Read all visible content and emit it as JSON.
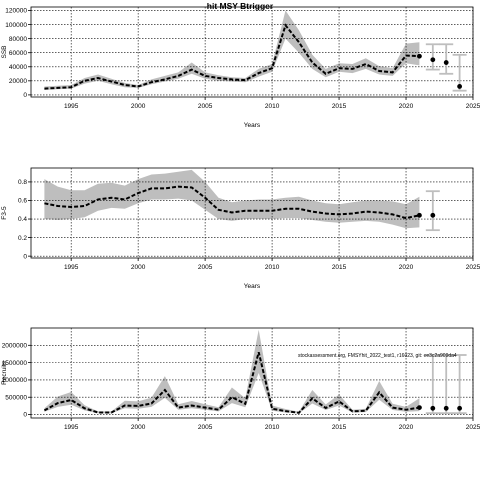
{
  "figure": {
    "title": "hit MSY Btrigger",
    "watermark": "stockassessment.org, FMSYhit_2022_test1, r16023, git: ee3c2a909da4"
  },
  "style": {
    "band_color": "#bebebe",
    "line_color": "#000000"
  },
  "chart_data": [
    {
      "type": "line",
      "id": "ssb",
      "ylabel": "SSB",
      "xlabel": "Years",
      "xlim": [
        1992,
        2025
      ],
      "ylim": [
        -3000,
        125000
      ],
      "xticks": [
        1995,
        2000,
        2005,
        2010,
        2015,
        2020,
        2025
      ],
      "yticks": [
        0,
        20000,
        40000,
        60000,
        80000,
        100000,
        120000
      ],
      "grid": true,
      "x": [
        1993,
        1994,
        1995,
        1996,
        1997,
        1998,
        1999,
        2000,
        2001,
        2002,
        2003,
        2004,
        2005,
        2006,
        2007,
        2008,
        2009,
        2010,
        2011,
        2012,
        2013,
        2014,
        2015,
        2016,
        2017,
        2018,
        2019,
        2020,
        2021
      ],
      "estimate": [
        9000,
        10000,
        11000,
        20000,
        24000,
        19000,
        14000,
        12000,
        18000,
        22000,
        27000,
        36000,
        27000,
        24000,
        22000,
        21000,
        31000,
        38000,
        99000,
        75000,
        46000,
        30000,
        38000,
        37000,
        44000,
        34000,
        32000,
        56000,
        55000
      ],
      "lower": [
        7000,
        8000,
        9000,
        16000,
        20000,
        15000,
        11000,
        10000,
        15000,
        19000,
        23000,
        30000,
        23000,
        20000,
        19000,
        18000,
        26000,
        33000,
        80000,
        60000,
        37000,
        25000,
        33000,
        31000,
        37000,
        29000,
        27000,
        45000,
        42000
      ],
      "upper": [
        12000,
        13000,
        14000,
        24000,
        29000,
        23000,
        17000,
        14000,
        22000,
        27000,
        32000,
        46000,
        32000,
        28000,
        25000,
        24000,
        37000,
        44000,
        120000,
        92000,
        57000,
        37000,
        45000,
        44000,
        52000,
        41000,
        38000,
        73000,
        75000
      ],
      "forecast": [
        {
          "x": 2022,
          "y": 50000,
          "lower": 36000,
          "upper": 72000
        },
        {
          "x": 2023,
          "y": 46000,
          "lower": 30000,
          "upper": 72000
        },
        {
          "x": 2024,
          "y": 12000,
          "lower": 6000,
          "upper": 57000
        }
      ]
    },
    {
      "type": "line",
      "id": "fbar",
      "ylabel": "F3-5",
      "xlabel": "Years",
      "xlim": [
        1992,
        2025
      ],
      "ylim": [
        -0.02,
        0.95
      ],
      "xticks": [
        1995,
        2000,
        2005,
        2010,
        2015,
        2020,
        2025
      ],
      "yticks": [
        0.0,
        0.2,
        0.4,
        0.6,
        0.8
      ],
      "grid": true,
      "x": [
        1993,
        1994,
        1995,
        1996,
        1997,
        1998,
        1999,
        2000,
        2001,
        2002,
        2003,
        2004,
        2005,
        2006,
        2007,
        2008,
        2009,
        2010,
        2011,
        2012,
        2013,
        2014,
        2015,
        2016,
        2017,
        2018,
        2019,
        2020,
        2021
      ],
      "estimate": [
        0.57,
        0.54,
        0.53,
        0.54,
        0.61,
        0.63,
        0.61,
        0.68,
        0.73,
        0.73,
        0.75,
        0.74,
        0.63,
        0.5,
        0.47,
        0.49,
        0.49,
        0.49,
        0.51,
        0.51,
        0.48,
        0.46,
        0.45,
        0.46,
        0.48,
        0.47,
        0.45,
        0.41,
        0.44
      ],
      "lower": [
        0.4,
        0.39,
        0.4,
        0.42,
        0.49,
        0.52,
        0.51,
        0.57,
        0.61,
        0.61,
        0.62,
        0.6,
        0.5,
        0.4,
        0.38,
        0.4,
        0.4,
        0.4,
        0.41,
        0.41,
        0.39,
        0.37,
        0.36,
        0.37,
        0.38,
        0.37,
        0.34,
        0.3,
        0.31
      ],
      "upper": [
        0.83,
        0.75,
        0.71,
        0.71,
        0.78,
        0.79,
        0.76,
        0.83,
        0.88,
        0.89,
        0.91,
        0.93,
        0.8,
        0.63,
        0.58,
        0.6,
        0.61,
        0.61,
        0.63,
        0.64,
        0.6,
        0.57,
        0.56,
        0.58,
        0.6,
        0.6,
        0.59,
        0.56,
        0.64
      ],
      "forecast": [
        {
          "x": 2022,
          "y": 0.44,
          "lower": 0.28,
          "upper": 0.7
        }
      ]
    },
    {
      "type": "line",
      "id": "recruits",
      "ylabel": "Recruits",
      "xlabel": "",
      "xlim": [
        1992,
        2025
      ],
      "ylim": [
        -100000,
        2500000
      ],
      "xticks": [
        1995,
        2000,
        2005,
        2010,
        2015,
        2020,
        2025
      ],
      "yticks": [
        0,
        500000,
        1000000,
        1500000,
        2000000
      ],
      "ytick_labels": [
        "0",
        "500000",
        "1000000",
        "1500000",
        "2000000"
      ],
      "grid": true,
      "x": [
        1993,
        1994,
        1995,
        1996,
        1997,
        1998,
        1999,
        2000,
        2001,
        2002,
        2003,
        2004,
        2005,
        2006,
        2007,
        2008,
        2009,
        2010,
        2011,
        2012,
        2013,
        2014,
        2015,
        2016,
        2017,
        2018,
        2019,
        2020,
        2021
      ],
      "estimate": [
        120000,
        330000,
        420000,
        180000,
        60000,
        60000,
        260000,
        250000,
        320000,
        710000,
        200000,
        260000,
        200000,
        140000,
        500000,
        310000,
        1800000,
        170000,
        100000,
        50000,
        470000,
        190000,
        380000,
        90000,
        110000,
        640000,
        200000,
        140000,
        200000
      ],
      "lower": [
        80000,
        220000,
        280000,
        120000,
        40000,
        40000,
        180000,
        170000,
        220000,
        480000,
        140000,
        180000,
        140000,
        90000,
        330000,
        210000,
        1200000,
        110000,
        60000,
        30000,
        320000,
        130000,
        260000,
        60000,
        70000,
        430000,
        130000,
        80000,
        100000
      ],
      "upper": [
        180000,
        520000,
        650000,
        270000,
        90000,
        90000,
        400000,
        380000,
        490000,
        1110000,
        300000,
        390000,
        300000,
        210000,
        780000,
        470000,
        2450000,
        260000,
        160000,
        80000,
        710000,
        290000,
        580000,
        140000,
        170000,
        970000,
        310000,
        220000,
        470000
      ],
      "forecast": [
        {
          "x": 2022,
          "y": 180000,
          "lower": 40000,
          "upper": 1720000
        },
        {
          "x": 2023,
          "y": 180000,
          "lower": 40000,
          "upper": 1720000
        },
        {
          "x": 2024,
          "y": 180000,
          "lower": 40000,
          "upper": 1720000
        }
      ]
    }
  ]
}
